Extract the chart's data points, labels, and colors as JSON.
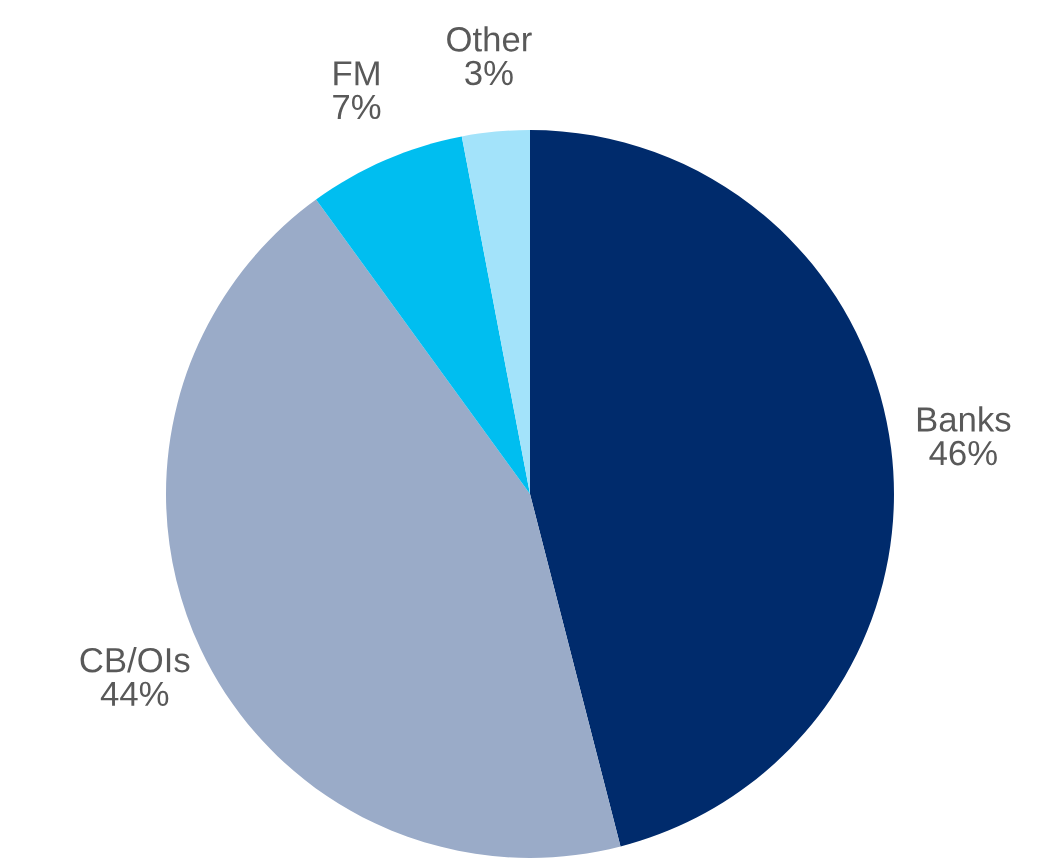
{
  "chart_data": {
    "type": "pie",
    "categories": [
      "Banks",
      "CB/OIs",
      "FM",
      "Other"
    ],
    "values": [
      46,
      44,
      7,
      3
    ],
    "value_labels": [
      "46%",
      "44%",
      "7%",
      "3%"
    ],
    "colors": [
      "#002b6c",
      "#9aabc8",
      "#00bef0",
      "#a3e3fa"
    ]
  }
}
